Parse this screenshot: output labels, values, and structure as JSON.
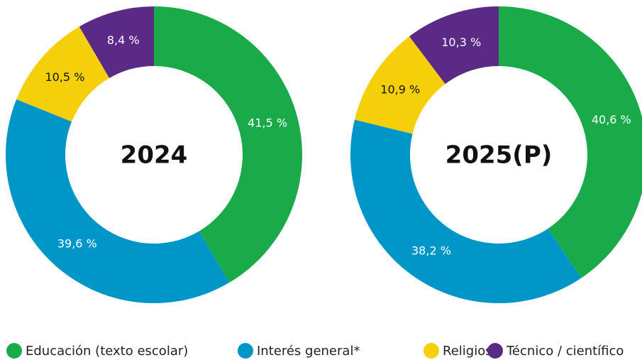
{
  "chart_data": [
    {
      "type": "donut",
      "title": "2024",
      "categories": [
        "Educación (texto escolar)",
        "Interés general*",
        "Religioso",
        "Técnico / científico"
      ],
      "values": [
        41.5,
        39.6,
        10.5,
        8.4
      ],
      "value_labels": [
        "41,5 %",
        "39,6 %",
        "10,5 %",
        "8,4 %"
      ],
      "colors": [
        "#1aaa4a",
        "#0096c8",
        "#f5cf0a",
        "#5a2a86"
      ]
    },
    {
      "type": "donut",
      "title": "2025(P)",
      "categories": [
        "Educación (texto escolar)",
        "Interés general*",
        "Religioso",
        "Técnico / científico"
      ],
      "values": [
        40.6,
        38.2,
        10.9,
        10.3
      ],
      "value_labels": [
        "40,6 %",
        "38,2 %",
        "10,9 %",
        "10,3 %"
      ],
      "colors": [
        "#1aaa4a",
        "#0096c8",
        "#f5cf0a",
        "#5a2a86"
      ]
    }
  ]
}
